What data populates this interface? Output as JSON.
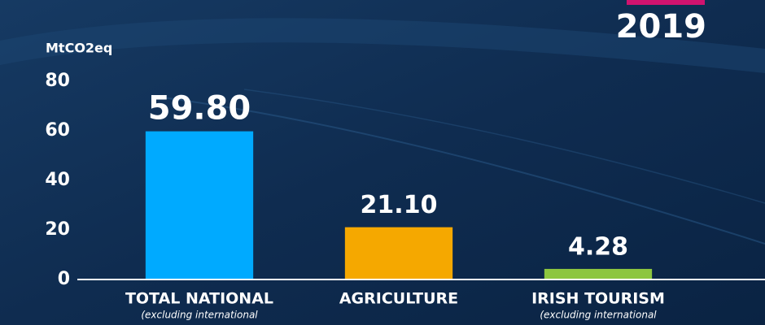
{
  "chart_data": {
    "type": "bar",
    "year": "2019",
    "y_axis_label": "MtCO2eq",
    "categories": [
      "TOTAL NATIONAL",
      "AGRICULTURE",
      "IRISH TOURISM"
    ],
    "category_notes": [
      "(excluding international",
      null,
      "(excluding international"
    ],
    "values": [
      59.8,
      21.1,
      4.28
    ],
    "value_labels": [
      "59.80",
      "21.10",
      "4.28"
    ],
    "colors": [
      "#00aaff",
      "#f5a800",
      "#8dc63f"
    ],
    "ylim": [
      0,
      80
    ],
    "yticks": [
      0,
      20,
      40,
      60,
      80
    ],
    "grid": false
  }
}
